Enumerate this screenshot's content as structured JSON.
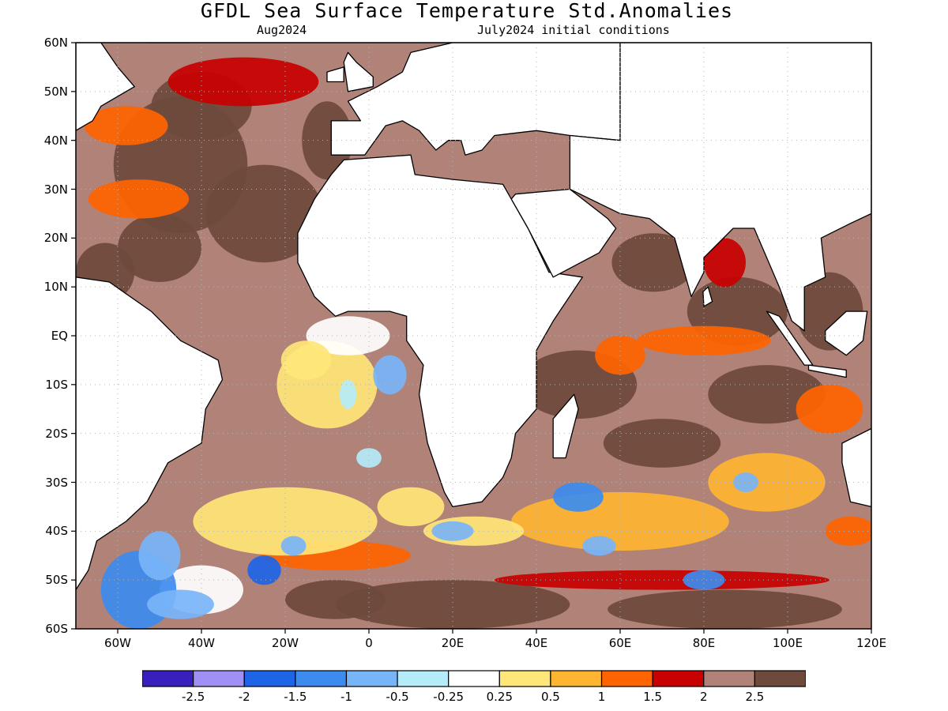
{
  "title": "GFDL Sea Surface Temperature Std.Anomalies",
  "subtitle_left": "Aug2024",
  "subtitle_right": "July2024 initial conditions",
  "axes": {
    "lat_labels": [
      "60N",
      "50N",
      "40N",
      "30N",
      "20N",
      "10N",
      "EQ",
      "10S",
      "20S",
      "30S",
      "40S",
      "50S",
      "60S"
    ],
    "lon_labels": [
      "60W",
      "40W",
      "20W",
      "0",
      "20E",
      "40E",
      "60E",
      "80E",
      "100E",
      "120E"
    ],
    "lat_range": [
      -60,
      60
    ],
    "lon_range": [
      -70,
      120
    ],
    "grid": "dotted"
  },
  "colorbar": {
    "levels": [
      "-2.5",
      "-2",
      "-1.5",
      "-1",
      "-0.5",
      "-0.25",
      "0.25",
      "0.5",
      "1",
      "1.5",
      "2",
      "2.5"
    ],
    "colors": [
      "#3a1fbf",
      "#a090f5",
      "#1e64e6",
      "#3c8cf0",
      "#78b4f8",
      "#b4ecfa",
      "#ffffff",
      "#ffe678",
      "#ffb432",
      "#ff6400",
      "#c80000",
      "#b08278",
      "#6e4a3c"
    ]
  },
  "map_colors": {
    "land": "#ffffff",
    "coast": "#000000",
    "grid": "#b4b4b4"
  }
}
